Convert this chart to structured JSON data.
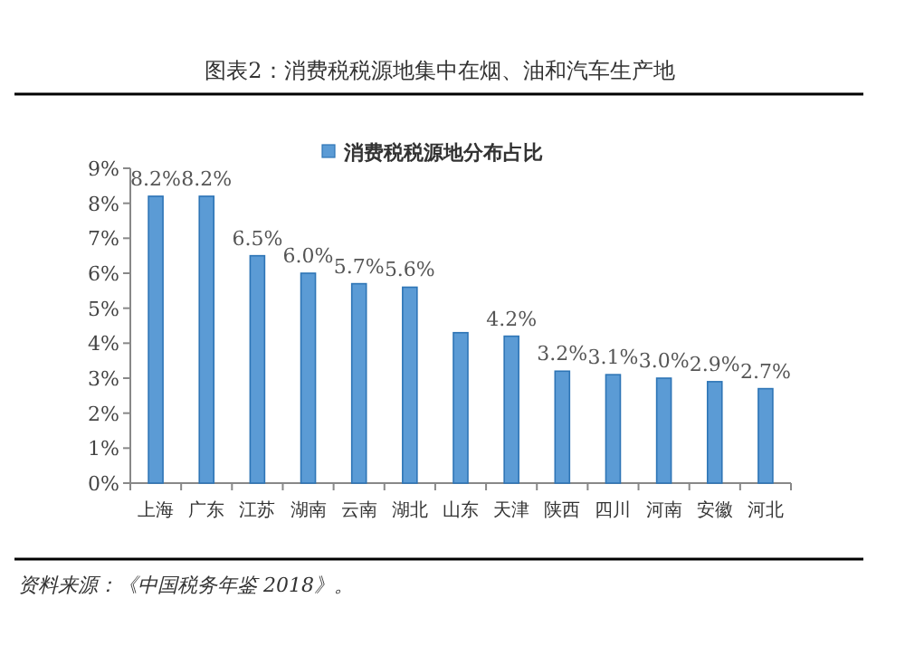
{
  "chart_data": {
    "type": "bar",
    "title": "图表2：消费税税源地集中在烟、油和汽车生产地",
    "categories": [
      "上海",
      "广东",
      "江苏",
      "湖南",
      "云南",
      "湖北",
      "山东",
      "天津",
      "陕西",
      "四川",
      "河南",
      "安徽",
      "河北"
    ],
    "series": [
      {
        "name": "消费税税源地分布占比",
        "color": "#5b9bd5",
        "values": [
          8.2,
          8.2,
          6.5,
          6.0,
          5.7,
          5.6,
          4.3,
          4.2,
          3.2,
          3.1,
          3.0,
          2.9,
          2.7
        ],
        "value_labels": [
          "8.2%",
          "8.2%",
          "6.5%",
          "6.0%",
          "5.7%",
          "5.6%",
          null,
          "4.2%",
          "3.2%",
          "3.1%",
          "3.0%",
          "2.9%",
          "2.7%"
        ]
      }
    ],
    "ylim": [
      0,
      9
    ],
    "yticks": [
      {
        "value": 0,
        "label": "0%"
      },
      {
        "value": 1,
        "label": "1%"
      },
      {
        "value": 2,
        "label": "2%"
      },
      {
        "value": 3,
        "label": "3%"
      },
      {
        "value": 4,
        "label": "4%"
      },
      {
        "value": 5,
        "label": "5%"
      },
      {
        "value": 6,
        "label": "6%"
      },
      {
        "value": 7,
        "label": "7%"
      },
      {
        "value": 8,
        "label": "8%"
      },
      {
        "value": 9,
        "label": "9%"
      }
    ],
    "legend": "top",
    "grid": false,
    "annotations": [
      "资料来源：《中国税务年鉴 2018》。"
    ]
  }
}
